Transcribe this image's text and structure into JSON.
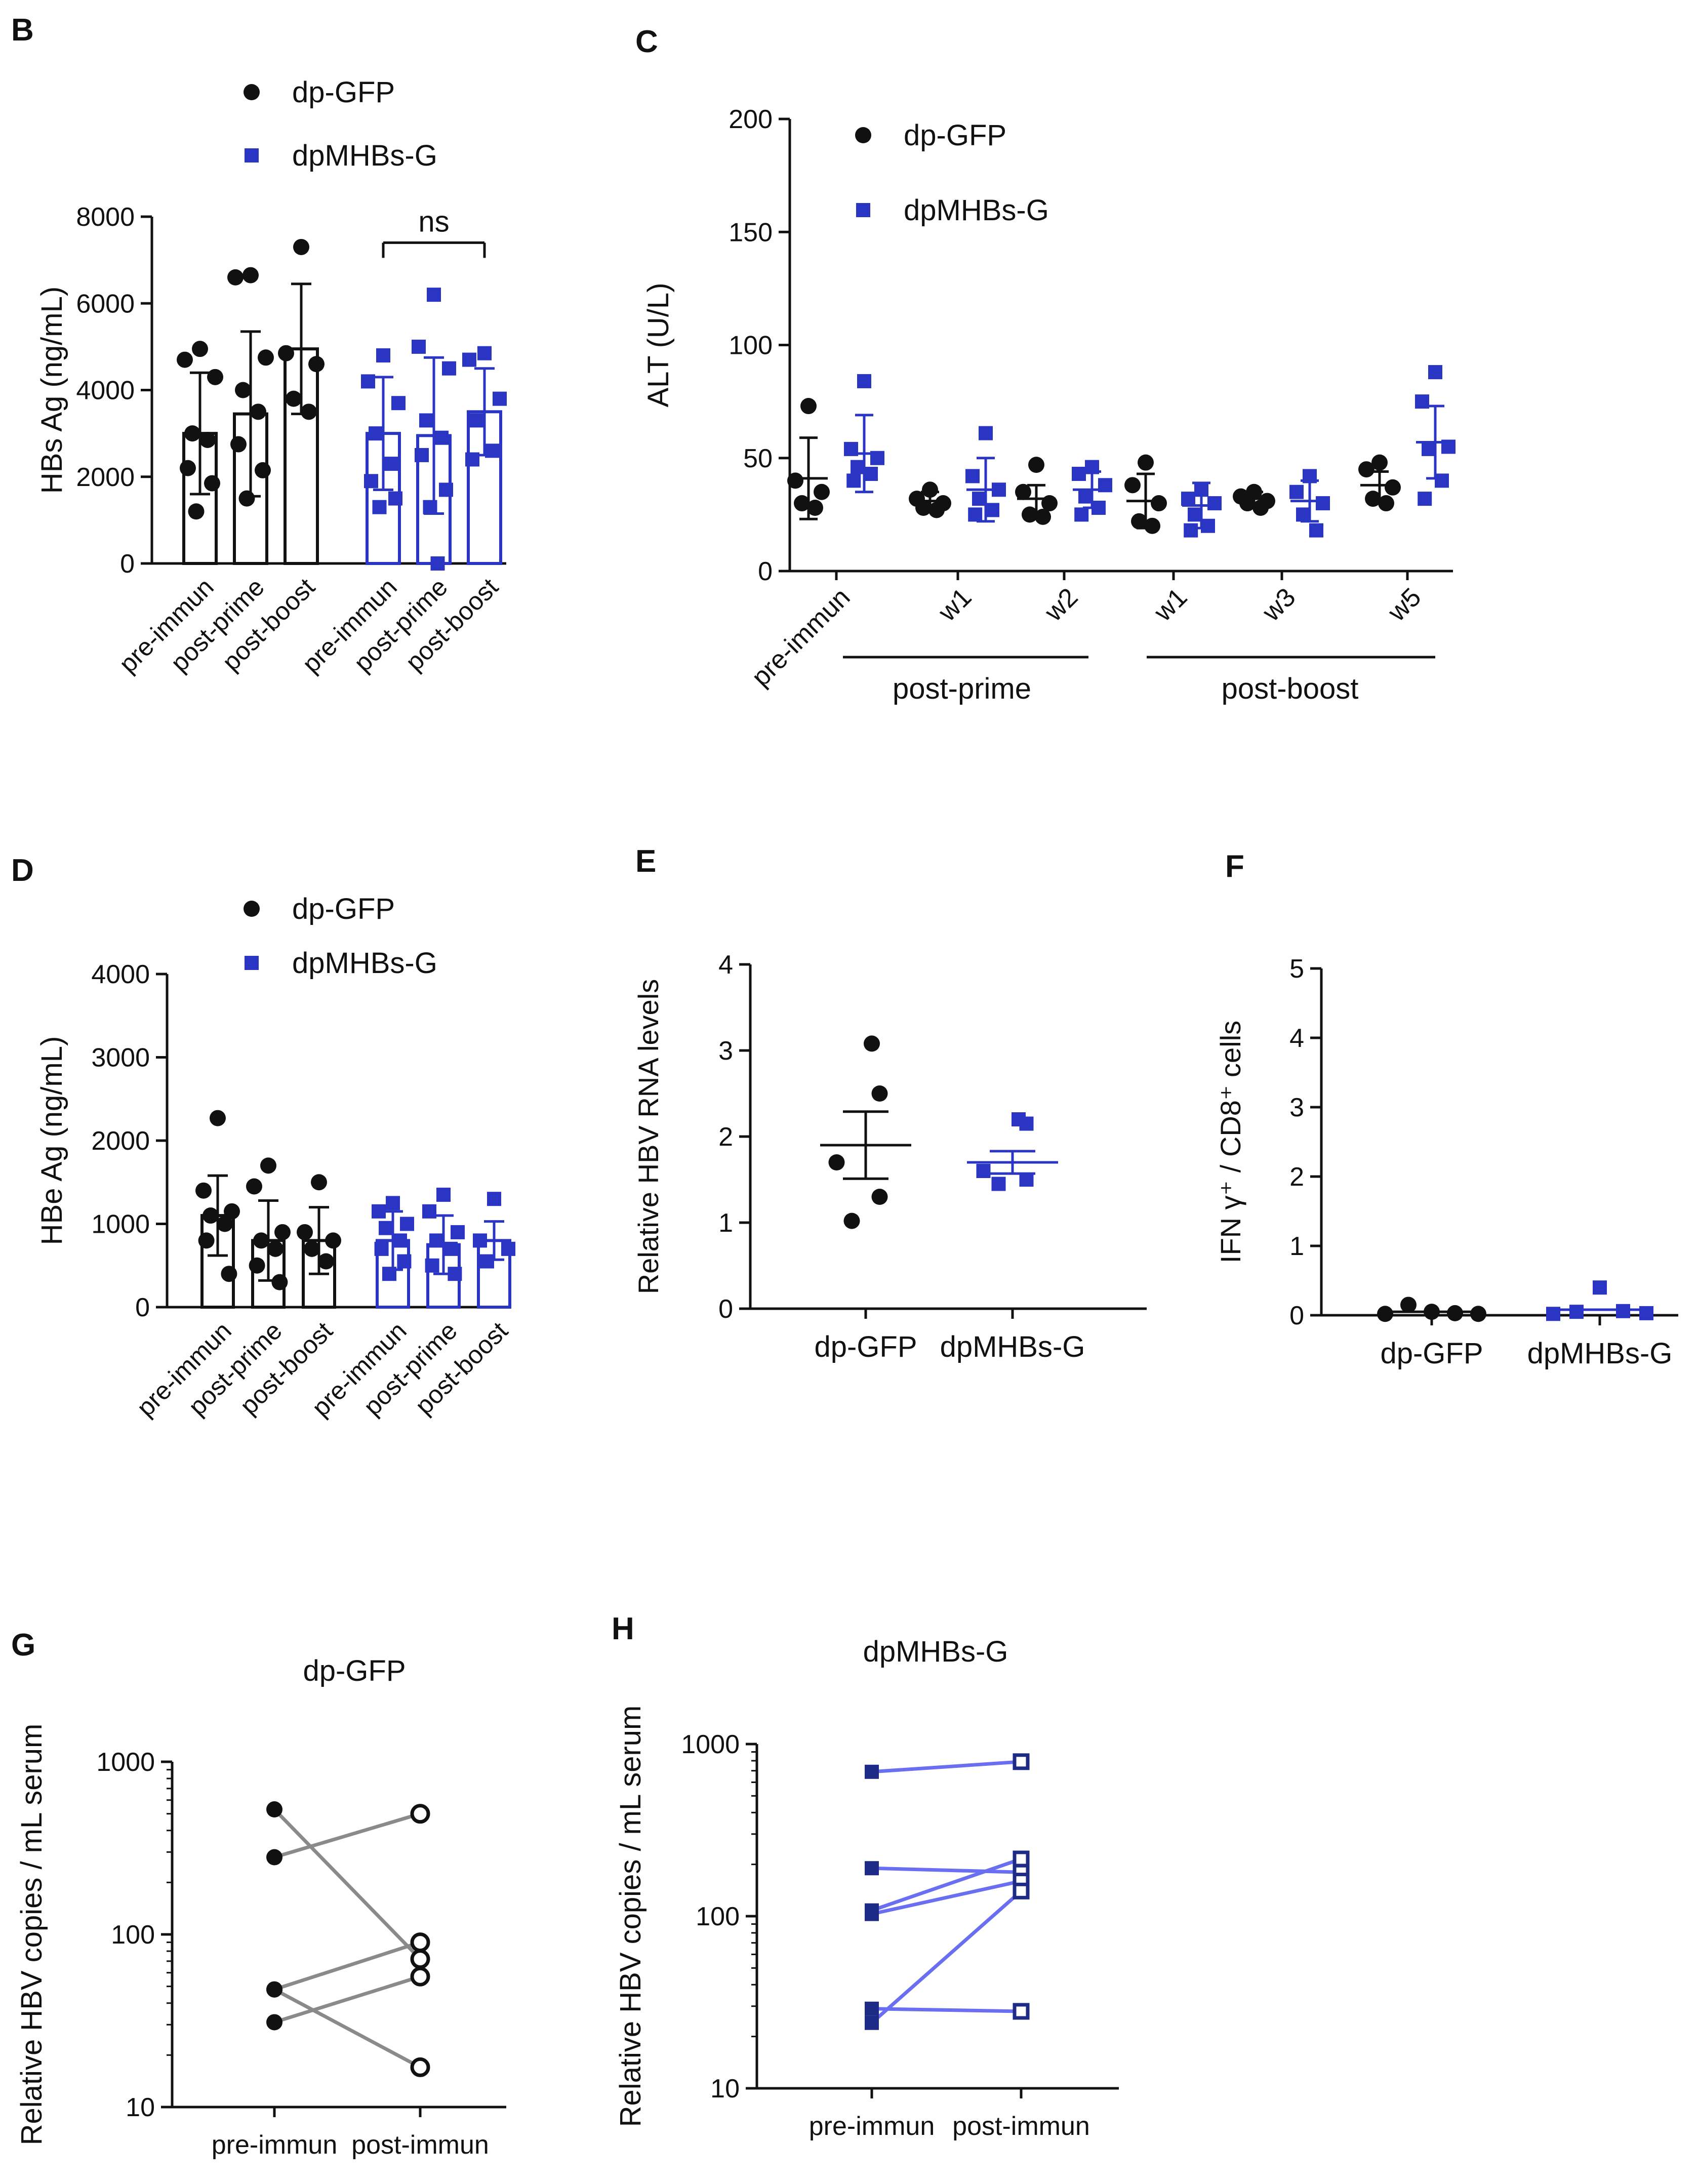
{
  "colors": {
    "black": "#111111",
    "blue": "#2b35c4",
    "navy": "#1d2a86",
    "gray": "#8a8a8a",
    "lightblue": "#6a6ef0"
  },
  "chart_data": [
    {
      "id": "B",
      "type": "bar",
      "panel_label": "B",
      "ylabel": "HBs Ag (ng/mL)",
      "ylim": [
        0,
        8000
      ],
      "yticks": [
        0,
        2000,
        4000,
        6000,
        8000
      ],
      "categories": [
        "pre-immun",
        "post-prime",
        "post-boost",
        "pre-immun",
        "post-prime",
        "post-boost"
      ],
      "legend": [
        {
          "name": "dp-GFP",
          "marker": "circle"
        },
        {
          "name": "dpMHBs-G",
          "marker": "square"
        }
      ],
      "annotation": "ns",
      "series": [
        {
          "name": "dp-GFP",
          "means": [
            3000,
            3450,
            4950
          ],
          "sd": [
            1400,
            1900,
            1500
          ],
          "points": [
            [
              4950,
              4700,
              4300,
              3000,
              2850,
              2200,
              1850,
              1200
            ],
            [
              6650,
              6600,
              4750,
              4000,
              3500,
              2750,
              2150,
              1500
            ],
            [
              7300,
              4850,
              4600,
              3800,
              3500
            ]
          ]
        },
        {
          "name": "dpMHBs-G",
          "means": [
            3000,
            2950,
            3500
          ],
          "sd": [
            1300,
            1800,
            1000
          ],
          "points": [
            [
              4800,
              4200,
              3700,
              3000,
              2300,
              1900,
              1500,
              1300
            ],
            [
              6200,
              5000,
              4500,
              3300,
              2900,
              2500,
              1700,
              1300,
              0
            ],
            [
              4850,
              4700,
              3800,
              3300,
              2600,
              2400
            ]
          ]
        }
      ]
    },
    {
      "id": "C",
      "type": "scatter",
      "panel_label": "C",
      "ylabel": "ALT (U/L)",
      "ylim": [
        0,
        200
      ],
      "yticks": [
        0,
        50,
        100,
        150,
        200
      ],
      "categories": [
        "pre-immun",
        "w1",
        "w2",
        "w1",
        "w3",
        "w5"
      ],
      "group_labels": [
        "post-prime",
        "post-boost"
      ],
      "legend": [
        {
          "name": "dp-GFP",
          "marker": "circle"
        },
        {
          "name": "dpMHBs-G",
          "marker": "square"
        }
      ],
      "series": [
        {
          "name": "dp-GFP",
          "means": [
            41,
            31,
            32,
            31,
            32,
            38
          ],
          "sd": [
            18,
            4,
            6,
            12,
            3,
            6
          ],
          "points": [
            [
              73,
              40,
              35,
              30,
              28
            ],
            [
              36,
              32,
              30,
              28,
              27
            ],
            [
              47,
              35,
              30,
              25,
              24
            ],
            [
              48,
              38,
              30,
              22,
              20
            ],
            [
              35,
              33,
              31,
              30,
              28
            ],
            [
              48,
              45,
              37,
              32,
              30
            ]
          ]
        },
        {
          "name": "dpMHBs-G",
          "means": [
            52,
            36,
            36,
            29,
            31,
            57
          ],
          "sd": [
            17,
            14,
            8,
            10,
            9,
            16
          ],
          "points": [
            [
              84,
              54,
              50,
              46,
              43,
              40
            ],
            [
              61,
              42,
              36,
              32,
              27,
              25
            ],
            [
              46,
              43,
              38,
              33,
              28,
              25
            ],
            [
              36,
              32,
              30,
              25,
              20,
              18
            ],
            [
              42,
              35,
              30,
              25,
              18
            ],
            [
              88,
              75,
              55,
              54,
              40,
              32
            ]
          ]
        }
      ]
    },
    {
      "id": "D",
      "type": "bar",
      "panel_label": "D",
      "ylabel": "HBe Ag (ng/mL)",
      "ylim": [
        0,
        4000
      ],
      "yticks": [
        0,
        1000,
        2000,
        3000,
        4000
      ],
      "categories": [
        "pre-immun",
        "post-prime",
        "post-boost",
        "pre-immun",
        "post-prime",
        "post-boost"
      ],
      "legend": [
        {
          "name": "dp-GFP",
          "marker": "circle"
        },
        {
          "name": "dpMHBs-G",
          "marker": "square"
        }
      ],
      "series": [
        {
          "name": "dp-GFP",
          "means": [
            1100,
            800,
            800
          ],
          "sd": [
            480,
            480,
            400
          ],
          "points": [
            [
              2270,
              1400,
              1150,
              1100,
              1000,
              800,
              400
            ],
            [
              1700,
              1450,
              900,
              800,
              700,
              500,
              300
            ],
            [
              1500,
              900,
              800,
              700,
              550
            ]
          ]
        },
        {
          "name": "dpMHBs-G",
          "means": [
            800,
            750,
            800
          ],
          "sd": [
            350,
            350,
            230
          ],
          "points": [
            [
              1250,
              1150,
              1000,
              950,
              800,
              700,
              550,
              400
            ],
            [
              1350,
              1150,
              900,
              800,
              700,
              500,
              400
            ],
            [
              1300,
              800,
              700,
              550
            ]
          ]
        }
      ]
    },
    {
      "id": "E",
      "type": "scatter",
      "panel_label": "E",
      "ylabel": "Relative HBV RNA levels",
      "ylim": [
        0,
        4
      ],
      "yticks": [
        0,
        1,
        2,
        3,
        4
      ],
      "categories": [
        "dp-GFP",
        "dpMHBs-G"
      ],
      "series": [
        {
          "name": "dp-GFP",
          "mean": 1.9,
          "sem": 0.39,
          "points": [
            3.08,
            2.5,
            1.7,
            1.3,
            1.02
          ]
        },
        {
          "name": "dpMHBs-G",
          "mean": 1.7,
          "sem": 0.13,
          "points": [
            2.2,
            2.15,
            1.6,
            1.5,
            1.45
          ]
        }
      ]
    },
    {
      "id": "F",
      "type": "scatter",
      "panel_label": "F",
      "ylabel": "IFN γ⁺ / CD8⁺ cells",
      "ylim": [
        0,
        5
      ],
      "yticks": [
        0,
        1,
        2,
        3,
        4,
        5
      ],
      "categories": [
        "dp-GFP",
        "dpMHBs-G"
      ],
      "series": [
        {
          "name": "dp-GFP",
          "mean": 0.05,
          "points": [
            0.02,
            0.15,
            0.05,
            0.03,
            0.02
          ]
        },
        {
          "name": "dpMHBs-G",
          "mean": 0.08,
          "points": [
            0.02,
            0.05,
            0.4,
            0.06,
            0.03
          ]
        }
      ]
    },
    {
      "id": "G",
      "type": "line",
      "panel_label": "G",
      "title": "dp-GFP",
      "ylabel": "Relative HBV copies / mL serum",
      "yscale": "log",
      "ylim": [
        10,
        1000
      ],
      "yticks": [
        10,
        100,
        1000
      ],
      "categories": [
        "pre-immun",
        "post-immun"
      ],
      "pairs": [
        [
          530,
          72
        ],
        [
          280,
          500
        ],
        [
          48,
          90
        ],
        [
          31,
          57
        ],
        [
          48,
          17
        ]
      ]
    },
    {
      "id": "H",
      "type": "line",
      "panel_label": "H",
      "title": "dpMHBs-G",
      "ylabel": "Relative HBV copies / mL serum",
      "yscale": "log",
      "ylim": [
        10,
        1000
      ],
      "yticks": [
        10,
        100,
        1000
      ],
      "categories": [
        "pre-immun",
        "post-immun"
      ],
      "pairs": [
        [
          690,
          790
        ],
        [
          190,
          180
        ],
        [
          108,
          215
        ],
        [
          103,
          160
        ],
        [
          29,
          28
        ],
        [
          24,
          140
        ]
      ]
    }
  ]
}
